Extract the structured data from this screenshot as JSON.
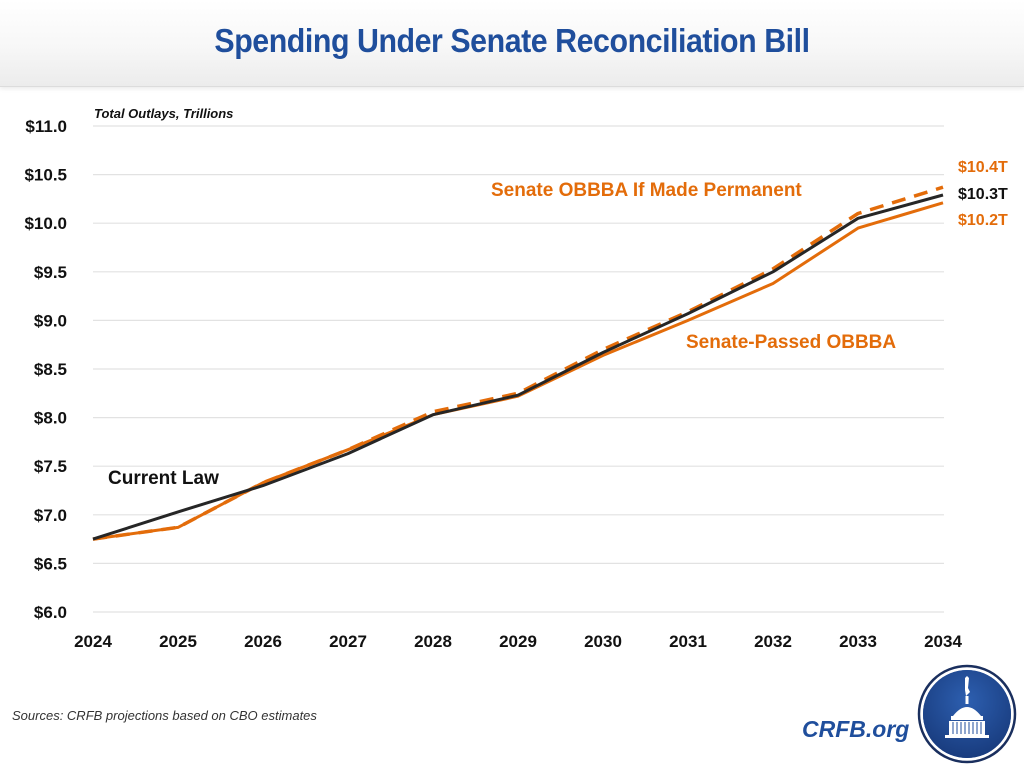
{
  "header": {
    "title": "Spending Under Senate Reconciliation Bill"
  },
  "footer": {
    "sources": "Sources: CRFB projections based on CBO estimates",
    "brand": "CRFB.org",
    "logo_icon": "capitol-dome-logo-icon"
  },
  "colors": {
    "title": "#1f4e9c",
    "current_law": "#262626",
    "senate_orange": "#e36c0a",
    "grid": "#e2e2e2"
  },
  "chart_data": {
    "type": "line",
    "title": "Spending Under Senate Reconciliation Bill",
    "unit_label": "Total Outlays, Trillions",
    "xlabel": "",
    "ylabel": "Total Outlays, Trillions",
    "x": [
      "2024",
      "2025",
      "2026",
      "2027",
      "2028",
      "2029",
      "2030",
      "2031",
      "2032",
      "2033",
      "2034"
    ],
    "ylim": [
      6.0,
      11.0
    ],
    "yticks": [
      6.0,
      6.5,
      7.0,
      7.5,
      8.0,
      8.5,
      9.0,
      9.5,
      10.0,
      10.5,
      11.0
    ],
    "ytick_labels": [
      "$6.0",
      "$6.5",
      "$7.0",
      "$7.5",
      "$8.0",
      "$8.5",
      "$9.0",
      "$9.5",
      "$10.0",
      "$10.5",
      "$11.0"
    ],
    "grid": true,
    "legend": "inline labels",
    "series": [
      {
        "name": "Current Law",
        "style": "solid",
        "color": "#262626",
        "values": [
          6.75,
          7.03,
          7.3,
          7.63,
          8.03,
          8.23,
          8.67,
          9.07,
          9.5,
          10.05,
          10.29
        ],
        "end_label": "$10.3T"
      },
      {
        "name": "Senate-Passed OBBBA",
        "style": "solid",
        "color": "#e36c0a",
        "values": [
          6.75,
          6.87,
          7.33,
          7.67,
          8.03,
          8.22,
          8.64,
          9.0,
          9.38,
          9.95,
          10.21
        ],
        "end_label": "$10.2T"
      },
      {
        "name": "Senate OBBBA If Made Permanent",
        "style": "dashed",
        "color": "#e36c0a",
        "values": [
          6.75,
          6.87,
          7.33,
          7.67,
          8.06,
          8.25,
          8.7,
          9.09,
          9.53,
          10.1,
          10.37
        ],
        "end_label": "$10.4T"
      }
    ],
    "annotations": [
      {
        "text": "Current Law",
        "series": "Current Law"
      },
      {
        "text": "Senate-Passed OBBBA",
        "series": "Senate-Passed OBBBA"
      },
      {
        "text": "Senate OBBBA If Made Permanent",
        "series": "Senate OBBBA If Made Permanent"
      }
    ]
  }
}
